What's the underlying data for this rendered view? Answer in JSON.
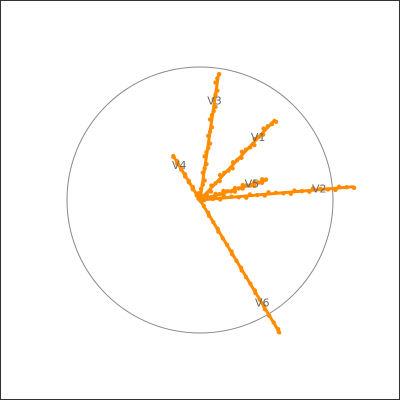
{
  "chart_data": {
    "type": "scatter",
    "title": "",
    "xlabel": "",
    "ylabel": "",
    "xlim": [
      -1.3,
      1.3
    ],
    "ylim": [
      -1.3,
      1.3
    ],
    "unit_circle": true,
    "grid": false,
    "legend": "none",
    "point_color": "#ff8c00",
    "circle_color": "#888888",
    "label_color": "#666666",
    "variables": [
      {
        "name": "V1",
        "x": 0.56,
        "y": 0.6
      },
      {
        "name": "V2",
        "x": 1.15,
        "y": 0.1
      },
      {
        "name": "V3",
        "x": 0.14,
        "y": 0.95
      },
      {
        "name": "V4",
        "x": -0.2,
        "y": 0.33
      },
      {
        "name": "V5",
        "x": 0.5,
        "y": 0.15
      },
      {
        "name": "V6",
        "x": 0.6,
        "y": -1.0
      }
    ],
    "points_per_variable": 24
  }
}
